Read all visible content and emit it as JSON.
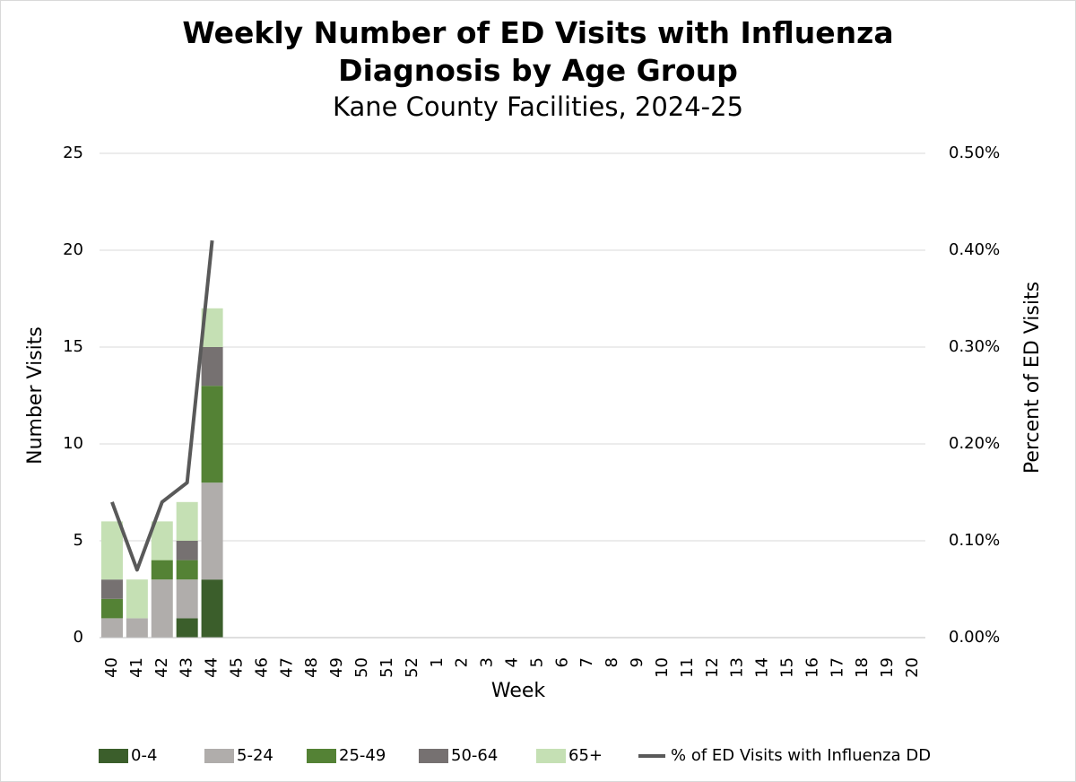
{
  "chart_data": {
    "type": "bar",
    "stacked": true,
    "title": "Weekly Number of ED Visits with Influenza Diagnosis by Age Group",
    "subtitle": "Kane County Facilities, 2024-25",
    "x_label": "Week",
    "y_label": "Number Visits",
    "y2_label": "Percent of ED Visits",
    "categories": [
      "40",
      "41",
      "42",
      "43",
      "44",
      "45",
      "46",
      "47",
      "48",
      "49",
      "50",
      "51",
      "52",
      "1",
      "2",
      "3",
      "4",
      "5",
      "6",
      "7",
      "8",
      "9",
      "10",
      "11",
      "12",
      "13",
      "14",
      "15",
      "16",
      "17",
      "18",
      "19",
      "20"
    ],
    "series": [
      {
        "name": "0-4",
        "color": "#3b5e2b",
        "values": [
          0,
          0,
          0,
          1,
          3,
          null,
          null,
          null,
          null,
          null,
          null,
          null,
          null,
          null,
          null,
          null,
          null,
          null,
          null,
          null,
          null,
          null,
          null,
          null,
          null,
          null,
          null,
          null,
          null,
          null,
          null,
          null,
          null
        ]
      },
      {
        "name": "5-24",
        "color": "#b0adab",
        "values": [
          1,
          1,
          3,
          2,
          5,
          null,
          null,
          null,
          null,
          null,
          null,
          null,
          null,
          null,
          null,
          null,
          null,
          null,
          null,
          null,
          null,
          null,
          null,
          null,
          null,
          null,
          null,
          null,
          null,
          null,
          null,
          null,
          null
        ]
      },
      {
        "name": "25-49",
        "color": "#548235",
        "values": [
          1,
          0,
          1,
          1,
          5,
          null,
          null,
          null,
          null,
          null,
          null,
          null,
          null,
          null,
          null,
          null,
          null,
          null,
          null,
          null,
          null,
          null,
          null,
          null,
          null,
          null,
          null,
          null,
          null,
          null,
          null,
          null,
          null
        ]
      },
      {
        "name": "50-64",
        "color": "#767171",
        "values": [
          1,
          0,
          0,
          1,
          2,
          null,
          null,
          null,
          null,
          null,
          null,
          null,
          null,
          null,
          null,
          null,
          null,
          null,
          null,
          null,
          null,
          null,
          null,
          null,
          null,
          null,
          null,
          null,
          null,
          null,
          null,
          null,
          null
        ]
      },
      {
        "name": "65+",
        "color": "#c5e0b4",
        "values": [
          3,
          2,
          2,
          2,
          2,
          null,
          null,
          null,
          null,
          null,
          null,
          null,
          null,
          null,
          null,
          null,
          null,
          null,
          null,
          null,
          null,
          null,
          null,
          null,
          null,
          null,
          null,
          null,
          null,
          null,
          null,
          null,
          null
        ]
      },
      {
        "name": "% of ED Visits with Influenza DD",
        "color": "#595959",
        "type": "line",
        "axis": "y2",
        "values": [
          0.14,
          0.07,
          0.14,
          0.16,
          0.41,
          null,
          null,
          null,
          null,
          null,
          null,
          null,
          null,
          null,
          null,
          null,
          null,
          null,
          null,
          null,
          null,
          null,
          null,
          null,
          null,
          null,
          null,
          null,
          null,
          null,
          null,
          null,
          null
        ]
      }
    ],
    "ylim": [
      0,
      25
    ],
    "yticks": [
      0,
      5,
      10,
      15,
      20,
      25
    ],
    "y2lim": [
      0,
      0.5
    ],
    "y2ticks": [
      {
        "value": 0,
        "label": "0.00%"
      },
      {
        "value": 0.1,
        "label": "0.10%"
      },
      {
        "value": 0.2,
        "label": "0.20%"
      },
      {
        "value": 0.3,
        "label": "0.30%"
      },
      {
        "value": 0.4,
        "label": "0.40%"
      },
      {
        "value": 0.5,
        "label": "0.50%"
      }
    ],
    "grid": true,
    "legend": "bottom"
  }
}
